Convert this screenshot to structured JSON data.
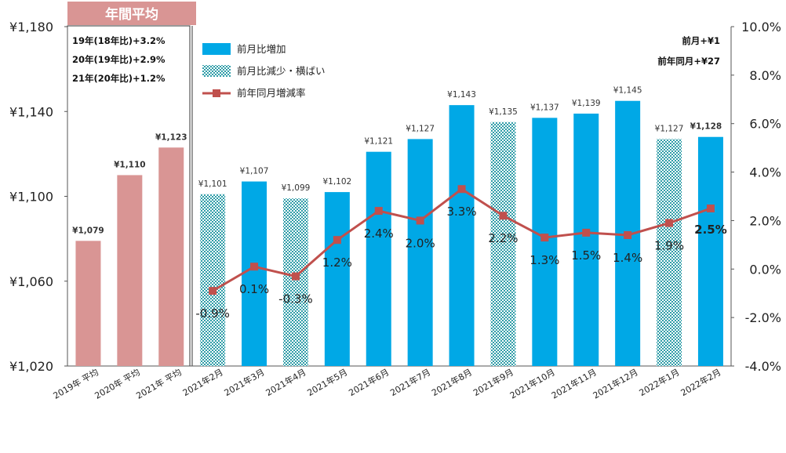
{
  "chart_data": {
    "type": "bar",
    "header": "年間平均",
    "categories": [
      "2019年 平均",
      "2020年 平均",
      "2021年 平均",
      "2021年2月",
      "2021年3月",
      "2021年4月",
      "2021年5月",
      "2021年6月",
      "2021年7月",
      "2021年8月",
      "2021年9月",
      "2021年10月",
      "2021年11月",
      "2021年12月",
      "2022年1月",
      "2022年2月"
    ],
    "values": [
      1079,
      1110,
      1123,
      1101,
      1107,
      1099,
      1102,
      1121,
      1127,
      1143,
      1135,
      1137,
      1139,
      1145,
      1127,
      1128
    ],
    "value_labels": [
      "¥1,079",
      "¥1,110",
      "¥1,123",
      "¥1,101",
      "¥1,107",
      "¥1,099",
      "¥1,102",
      "¥1,121",
      "¥1,127",
      "¥1,143",
      "¥1,135",
      "¥1,137",
      "¥1,139",
      "¥1,145",
      "¥1,127",
      "¥1,128"
    ],
    "bar_kind": [
      "avg",
      "avg",
      "avg",
      "down",
      "up",
      "down",
      "up",
      "up",
      "up",
      "up",
      "down",
      "up",
      "up",
      "up",
      "down",
      "up"
    ],
    "line_series": {
      "name": "前年同月増減率",
      "values": [
        -0.9,
        0.1,
        -0.3,
        1.2,
        2.4,
        2.0,
        3.3,
        2.2,
        1.3,
        1.5,
        1.4,
        1.9,
        2.5
      ],
      "labels": [
        "-0.9%",
        "0.1%",
        "-0.3%",
        "1.2%",
        "2.4%",
        "2.0%",
        "3.3%",
        "2.2%",
        "1.3%",
        "1.5%",
        "1.4%",
        "1.9%",
        "2.5%"
      ]
    },
    "y_left": {
      "min": 1020,
      "max": 1180,
      "ticks": [
        1020,
        1060,
        1100,
        1140,
        1180
      ],
      "tick_labels": [
        "¥1,020",
        "¥1,060",
        "¥1,100",
        "¥1,140",
        "¥1,180"
      ]
    },
    "y_right": {
      "min": -4,
      "max": 10,
      "ticks": [
        -4,
        -2,
        0,
        2,
        4,
        6,
        8,
        10
      ],
      "tick_labels": [
        "-4.0%",
        "-2.0%",
        "0.0%",
        "2.0%",
        "4.0%",
        "6.0%",
        "8.0%",
        "10.0%"
      ]
    },
    "legend": [
      {
        "key": "up",
        "label": "前月比増加"
      },
      {
        "key": "down",
        "label": "前月比減少・横ばい"
      },
      {
        "key": "line",
        "label": "前年同月増減率"
      }
    ],
    "annual_notes": [
      "19年(18年比)+3.2%",
      "20年(19年比)+2.9%",
      "21年(20年比)+1.2%"
    ],
    "summary_notes": [
      "前月+¥1",
      "前年同月+¥27"
    ],
    "colors": {
      "avg": "#d99594",
      "up": "#00a8e6",
      "down": "#2f9da8",
      "line": "#c0504d",
      "header": "#d99594"
    },
    "grid": false
  }
}
